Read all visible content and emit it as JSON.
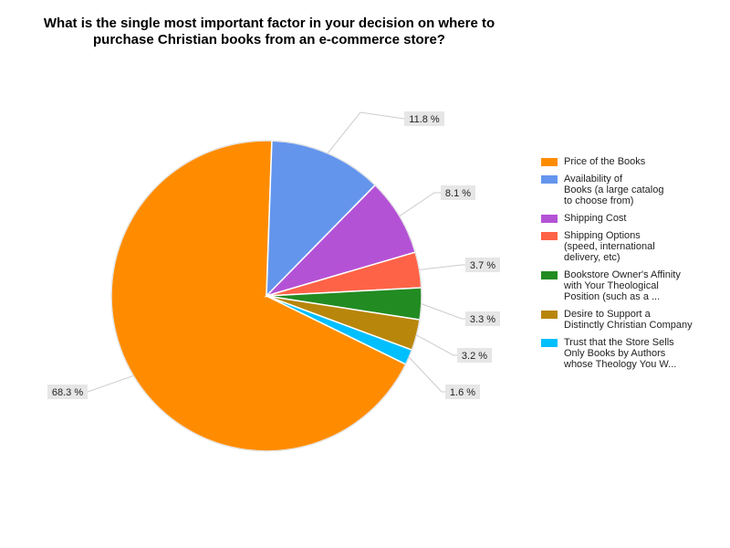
{
  "chart_data": {
    "type": "pie",
    "title": "What is the single most important factor in your decision on where to\npurchase Christian books from an e-commerce store?",
    "categories": [
      "Price of the Books",
      "Availability of\nBooks (a large catalog\nto choose from)",
      "Shipping Cost",
      "Shipping Options\n(speed, international\ndelivery, etc)",
      "Bookstore Owner's Affinity\nwith Your Theological\nPosition (such as a ...",
      "Desire to Support a\nDistinctly Christian Company",
      "Trust that the Store Sells\nOnly Books by Authors\nwhose Theology You W..."
    ],
    "values": [
      68.3,
      11.8,
      8.1,
      3.7,
      3.3,
      3.2,
      1.6
    ],
    "data_labels": [
      "68.3 %",
      "11.8 %",
      "8.1 %",
      "3.7 %",
      "3.3 %",
      "3.2 %",
      "1.6 %"
    ],
    "colors": [
      "#ff8c00",
      "#6495ed",
      "#b452d6",
      "#ff6347",
      "#228b22",
      "#b8860b",
      "#00bfff"
    ],
    "legend_position": "right"
  }
}
